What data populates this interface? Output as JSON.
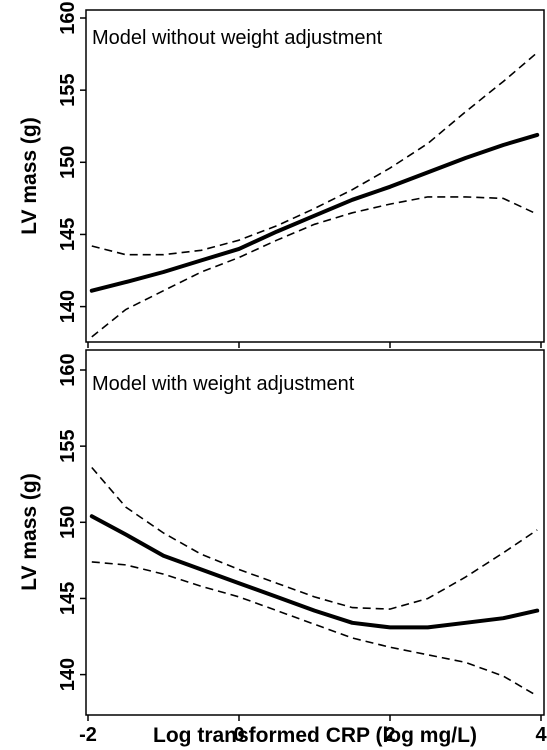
{
  "chart_data": [
    {
      "type": "line",
      "panel_title": "Model without weight adjustment",
      "xlabel": "",
      "ylabel": "LV mass (g)",
      "xlim": [
        -2,
        4
      ],
      "ylim": [
        137.5,
        160.5
      ],
      "x_ticks": [
        -2,
        0,
        2,
        4
      ],
      "x_tick_labels_shown": false,
      "y_ticks": [
        140,
        145,
        150,
        155,
        160
      ],
      "y_tick_labels": [
        "140",
        "145",
        "150",
        "155",
        "160"
      ],
      "legend": "none",
      "grid": false,
      "series": [
        {
          "role": "estimate",
          "style": "solid",
          "x": [
            -1.95,
            -1.5,
            -1.0,
            -0.5,
            0.0,
            0.5,
            1.0,
            1.5,
            2.0,
            2.5,
            3.0,
            3.5,
            3.95
          ],
          "y": [
            141.1,
            141.7,
            142.4,
            143.2,
            144.0,
            145.2,
            146.3,
            147.4,
            148.3,
            149.3,
            150.3,
            151.2,
            151.9
          ]
        },
        {
          "role": "upper_ci",
          "style": "dashed",
          "x": [
            -1.95,
            -1.5,
            -1.0,
            -0.5,
            0.0,
            0.5,
            1.0,
            1.5,
            2.0,
            2.5,
            3.0,
            3.5,
            3.95
          ],
          "y": [
            144.2,
            143.6,
            143.6,
            143.9,
            144.6,
            145.6,
            146.8,
            148.1,
            149.6,
            151.3,
            153.5,
            155.6,
            157.6
          ]
        },
        {
          "role": "lower_ci",
          "style": "dashed",
          "x": [
            -1.95,
            -1.5,
            -1.0,
            -0.5,
            0.0,
            0.5,
            1.0,
            1.5,
            2.0,
            2.5,
            3.0,
            3.5,
            3.95
          ],
          "y": [
            137.9,
            139.8,
            141.1,
            142.4,
            143.4,
            144.6,
            145.7,
            146.5,
            147.1,
            147.6,
            147.6,
            147.5,
            146.4
          ]
        }
      ]
    },
    {
      "type": "line",
      "panel_title": "Model with weight adjustment",
      "xlabel": "Log transformed CRP (log mg/L)",
      "ylabel": "LV mass (g)",
      "xlim": [
        -2,
        4
      ],
      "ylim": [
        137.5,
        160.5
      ],
      "x_ticks": [
        -2,
        0,
        2,
        4
      ],
      "x_tick_labels": [
        "-2",
        "0",
        "2",
        "4"
      ],
      "y_ticks": [
        140,
        145,
        150,
        155,
        160
      ],
      "y_tick_labels": [
        "140",
        "145",
        "150",
        "155",
        "160"
      ],
      "legend": "none",
      "grid": false,
      "series": [
        {
          "role": "estimate",
          "style": "solid",
          "x": [
            -1.95,
            -1.5,
            -1.0,
            -0.5,
            0.0,
            0.5,
            1.0,
            1.5,
            2.0,
            2.5,
            3.0,
            3.5,
            3.95
          ],
          "y": [
            150.4,
            149.2,
            147.8,
            146.9,
            146.0,
            145.1,
            144.2,
            143.4,
            143.1,
            143.1,
            143.4,
            143.7,
            144.2
          ]
        },
        {
          "role": "upper_ci",
          "style": "dashed",
          "x": [
            -1.95,
            -1.5,
            -1.0,
            -0.5,
            0.0,
            0.5,
            1.0,
            1.5,
            2.0,
            2.5,
            3.0,
            3.5,
            3.95
          ],
          "y": [
            153.6,
            151.0,
            149.3,
            147.9,
            146.9,
            146.0,
            145.1,
            144.4,
            144.3,
            145.0,
            146.4,
            148.0,
            149.5
          ]
        },
        {
          "role": "lower_ci",
          "style": "dashed",
          "x": [
            -1.95,
            -1.5,
            -1.0,
            -0.5,
            0.0,
            0.5,
            1.0,
            1.5,
            2.0,
            2.5,
            3.0,
            3.5,
            3.95
          ],
          "y": [
            147.4,
            147.2,
            146.6,
            145.8,
            145.1,
            144.2,
            143.3,
            142.4,
            141.8,
            141.3,
            140.8,
            139.9,
            138.6
          ]
        }
      ]
    }
  ]
}
